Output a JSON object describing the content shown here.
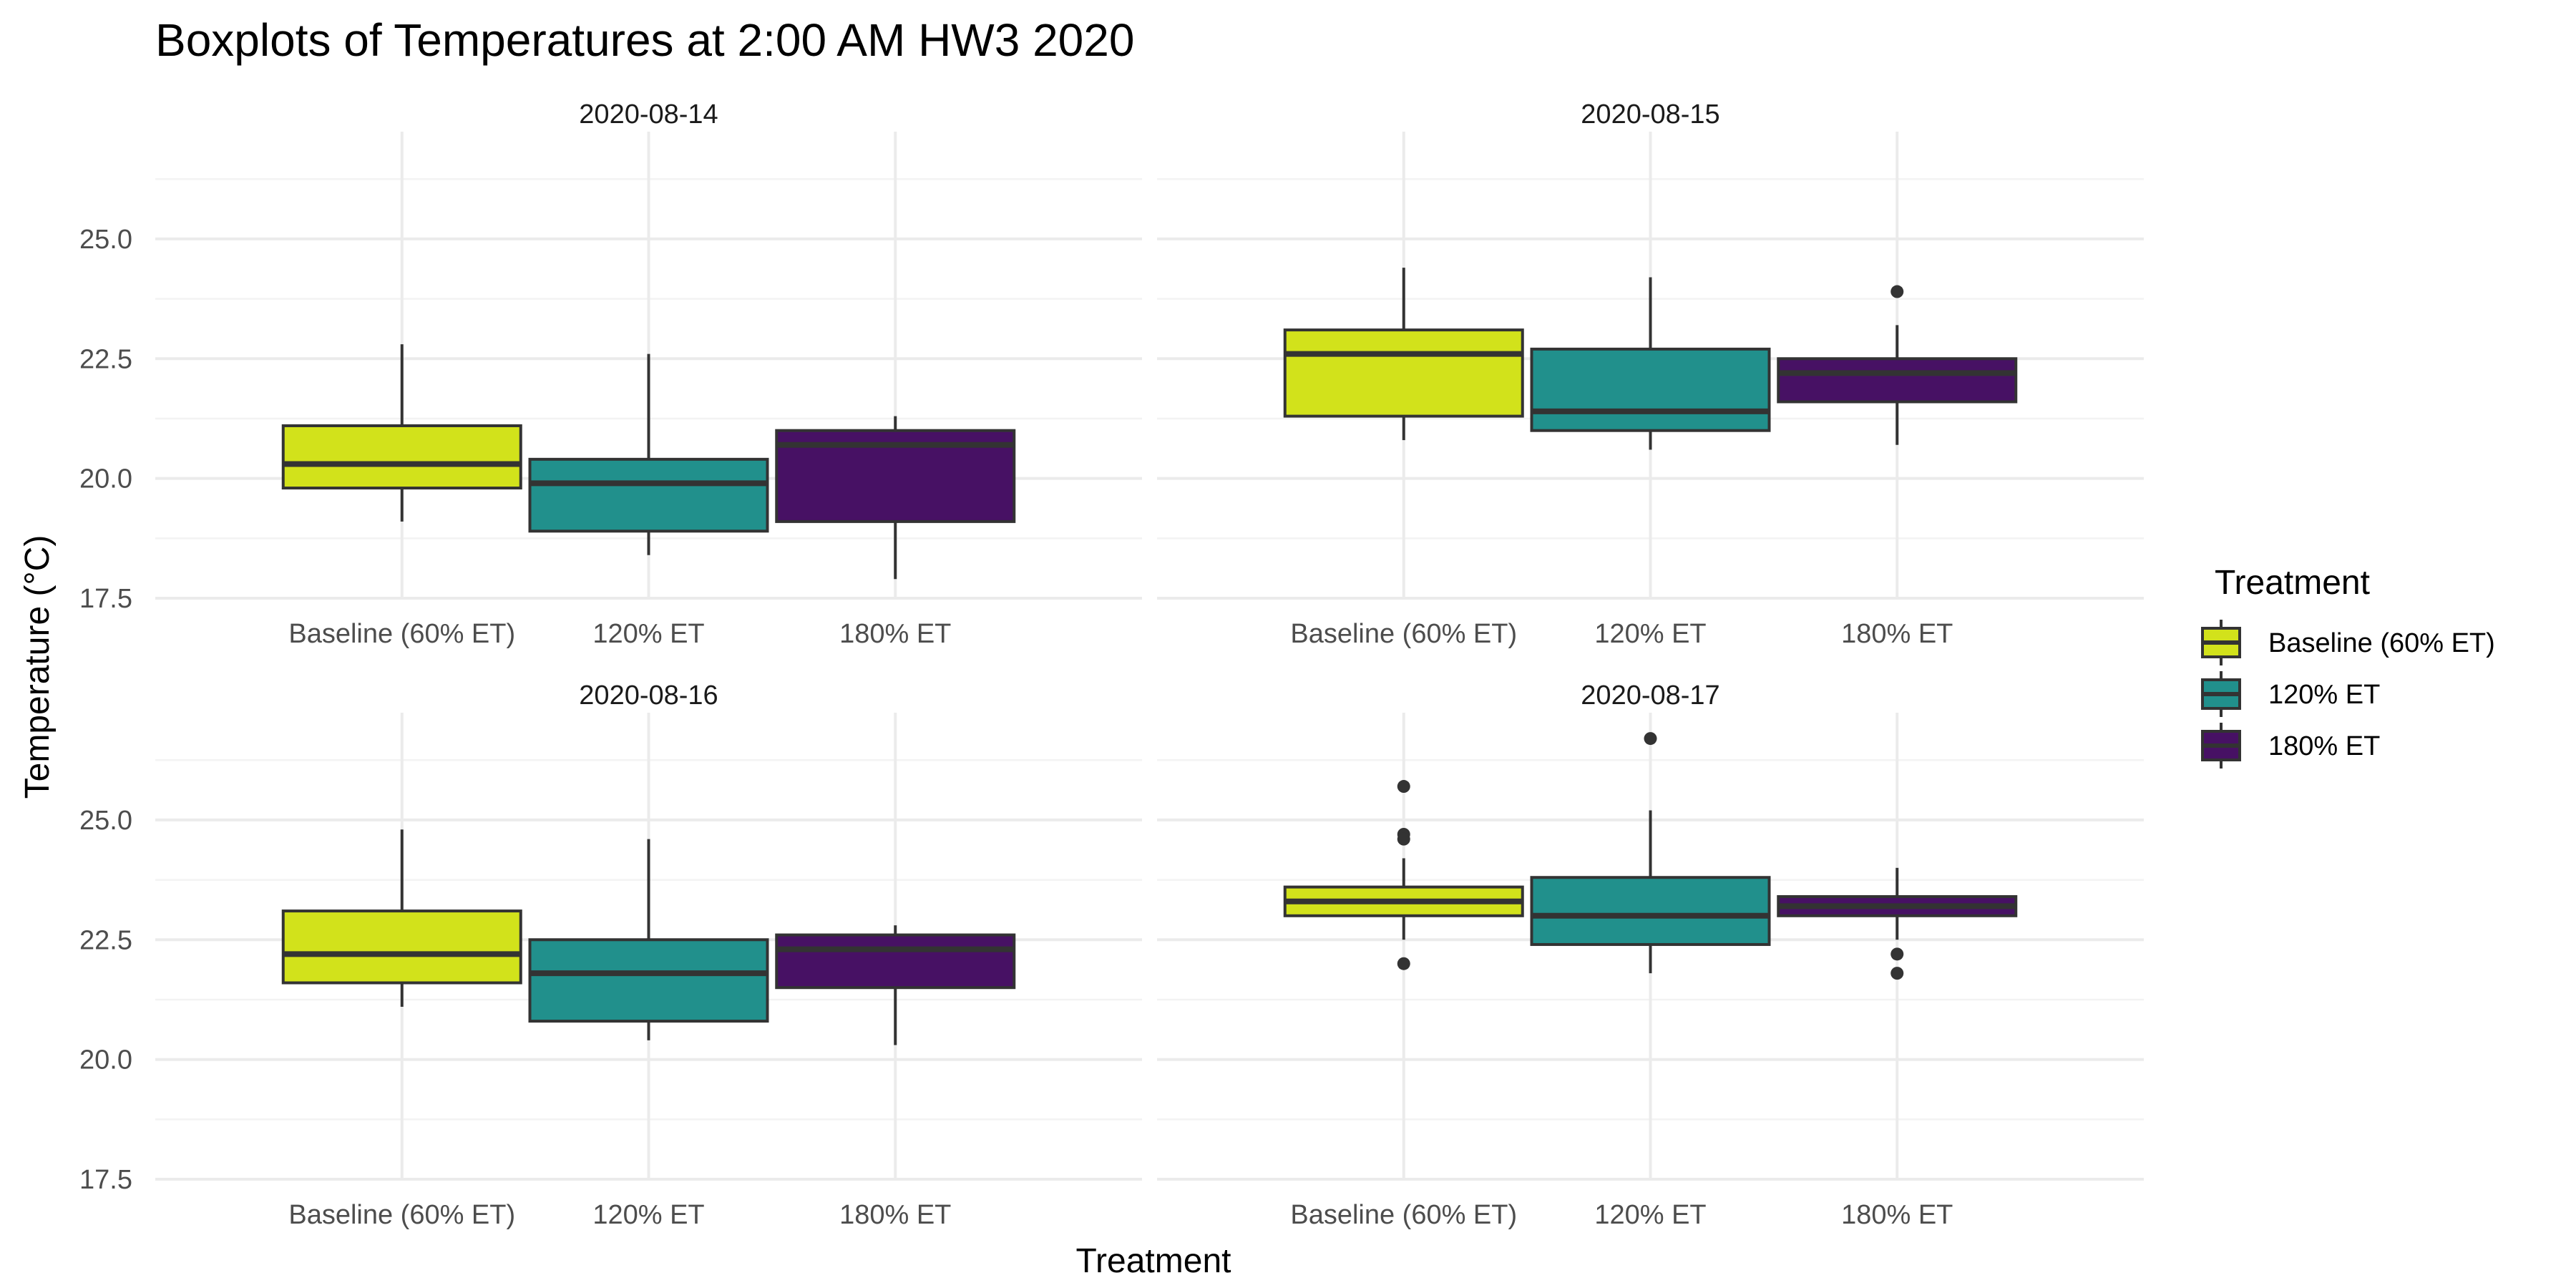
{
  "chart_data": {
    "type": "boxplot",
    "title": "Boxplots of Temperatures at 2:00 AM HW3 2020",
    "xlabel": "Treatment",
    "ylabel": "Temperature (°C)",
    "ylim": [
      17.5,
      27.0
    ],
    "yticks": [
      "17.5",
      "20.0",
      "22.5",
      "25.0"
    ],
    "ytick_values": [
      17.5,
      20.0,
      22.5,
      25.0
    ],
    "grid": true,
    "legend_position": "right",
    "legend_title": "Treatment",
    "categories": [
      "Baseline (60% ET)",
      "120% ET",
      "180% ET"
    ],
    "colors": [
      "#d2e21b",
      "#21908c",
      "#471164"
    ],
    "box_stroke": "#333333",
    "panels": [
      {
        "label": "2020-08-14",
        "boxes": [
          {
            "category": "Baseline (60% ET)",
            "whisker_low": 19.1,
            "q1": 19.8,
            "median": 20.3,
            "q3": 21.1,
            "whisker_high": 22.8,
            "outliers": []
          },
          {
            "category": "120% ET",
            "whisker_low": 18.4,
            "q1": 18.9,
            "median": 19.9,
            "q3": 20.4,
            "whisker_high": 22.6,
            "outliers": []
          },
          {
            "category": "180% ET",
            "whisker_low": 17.9,
            "q1": 19.1,
            "median": 20.7,
            "q3": 21.0,
            "whisker_high": 21.3,
            "outliers": []
          }
        ]
      },
      {
        "label": "2020-08-15",
        "boxes": [
          {
            "category": "Baseline (60% ET)",
            "whisker_low": 20.8,
            "q1": 21.3,
            "median": 22.6,
            "q3": 23.1,
            "whisker_high": 24.4,
            "outliers": []
          },
          {
            "category": "120% ET",
            "whisker_low": 20.6,
            "q1": 21.0,
            "median": 21.4,
            "q3": 22.7,
            "whisker_high": 24.2,
            "outliers": []
          },
          {
            "category": "180% ET",
            "whisker_low": 20.7,
            "q1": 21.6,
            "median": 22.2,
            "q3": 22.5,
            "whisker_high": 23.2,
            "outliers": [
              23.9
            ]
          }
        ]
      },
      {
        "label": "2020-08-16",
        "boxes": [
          {
            "category": "Baseline (60% ET)",
            "whisker_low": 21.1,
            "q1": 21.6,
            "median": 22.2,
            "q3": 23.1,
            "whisker_high": 24.8,
            "outliers": []
          },
          {
            "category": "120% ET",
            "whisker_low": 20.4,
            "q1": 20.8,
            "median": 21.8,
            "q3": 22.5,
            "whisker_high": 24.6,
            "outliers": []
          },
          {
            "category": "180% ET",
            "whisker_low": 20.3,
            "q1": 21.5,
            "median": 22.3,
            "q3": 22.6,
            "whisker_high": 22.8,
            "outliers": []
          }
        ]
      },
      {
        "label": "2020-08-17",
        "boxes": [
          {
            "category": "Baseline (60% ET)",
            "whisker_low": 22.5,
            "q1": 23.0,
            "median": 23.3,
            "q3": 23.6,
            "whisker_high": 24.2,
            "outliers": [
              25.7,
              24.7,
              24.6,
              22.0
            ]
          },
          {
            "category": "120% ET",
            "whisker_low": 21.8,
            "q1": 22.4,
            "median": 23.0,
            "q3": 23.8,
            "whisker_high": 25.2,
            "outliers": [
              26.7
            ]
          },
          {
            "category": "180% ET",
            "whisker_low": 22.5,
            "q1": 23.0,
            "median": 23.2,
            "q3": 23.4,
            "whisker_high": 24.0,
            "outliers": [
              22.2,
              21.8
            ]
          }
        ]
      }
    ]
  }
}
